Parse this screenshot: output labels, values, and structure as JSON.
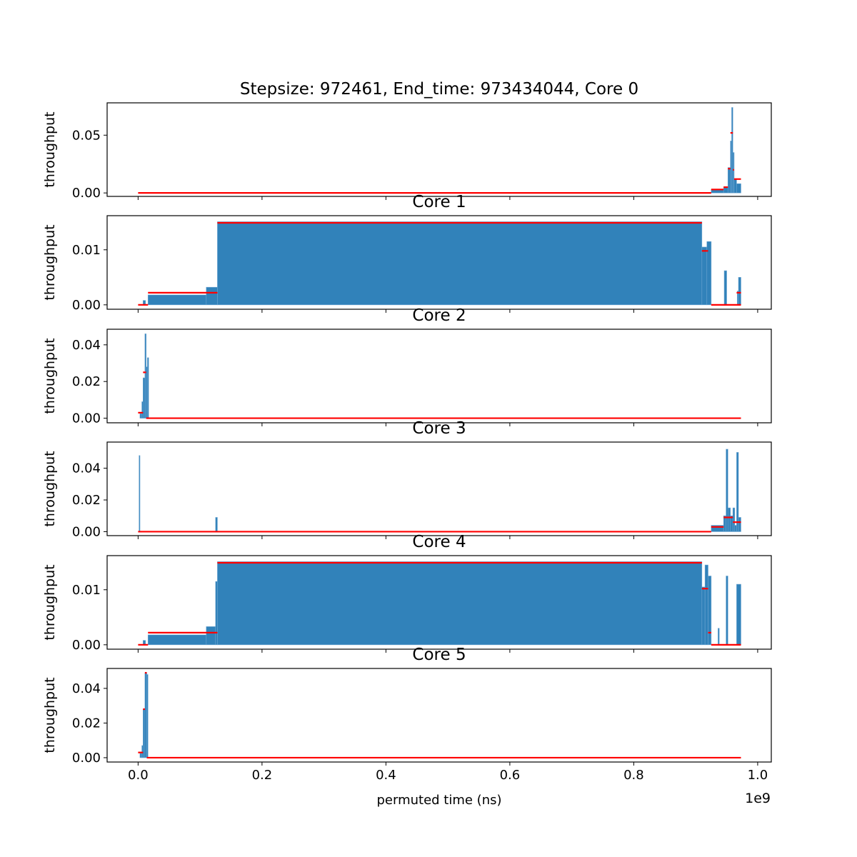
{
  "chart_data": {
    "type": "bar",
    "figure": {
      "xlabel": "permuted time (ns)",
      "x_offset_label": "1e9",
      "xlim": [
        -50000000,
        1022000000
      ],
      "xticks": [
        0,
        200000000,
        400000000,
        600000000,
        800000000,
        1000000000
      ],
      "xtick_labels": [
        "0.0",
        "0.2",
        "0.4",
        "0.6",
        "0.8",
        "1.0"
      ]
    },
    "colors": {
      "bar": "#1f77b4",
      "mean_line": "#ff0000"
    },
    "panels": [
      {
        "title": "Stepsize: 972461, End_time: 973434044, Core 0",
        "ylabel": "throughput",
        "ylim": [
          -0.003,
          0.078
        ],
        "yticks": [
          0,
          0.05
        ],
        "ytick_labels": [
          "0.00",
          "0.05"
        ],
        "bars": [
          [
            925000000,
            945000000,
            0.003
          ],
          [
            945000000,
            952000000,
            0.005
          ],
          [
            952000000,
            956000000,
            0.022
          ],
          [
            956000000,
            958000000,
            0.045
          ],
          [
            958000000,
            960000000,
            0.074
          ],
          [
            960000000,
            962000000,
            0.035
          ],
          [
            962000000,
            966000000,
            0.012
          ],
          [
            966000000,
            973000000,
            0.008
          ]
        ],
        "means": [
          [
            0,
            925000000,
            0
          ],
          [
            925000000,
            945000000,
            0.003
          ],
          [
            945000000,
            952000000,
            0.005
          ],
          [
            952000000,
            956000000,
            0.021
          ],
          [
            956000000,
            960000000,
            0.052
          ],
          [
            960000000,
            962000000,
            0.02
          ],
          [
            962000000,
            973000000,
            0.012
          ]
        ]
      },
      {
        "title": "Core 1",
        "ylabel": "throughput",
        "ylim": [
          -0.0008,
          0.0162
        ],
        "yticks": [
          0,
          0.01
        ],
        "ytick_labels": [
          "0.00",
          "0.01"
        ],
        "bars": [
          [
            8000000,
            12000000,
            0.0008
          ],
          [
            16000000,
            110000000,
            0.0018
          ],
          [
            110000000,
            128000000,
            0.0032
          ],
          [
            128000000,
            910000000,
            0.0151
          ],
          [
            910000000,
            918000000,
            0.0105
          ],
          [
            918000000,
            925000000,
            0.0115
          ],
          [
            946000000,
            950000000,
            0.0062
          ],
          [
            967000000,
            969000000,
            0.0025
          ],
          [
            969000000,
            973000000,
            0.005
          ]
        ],
        "means": [
          [
            0,
            16000000,
            0
          ],
          [
            16000000,
            128000000,
            0.0022
          ],
          [
            128000000,
            910000000,
            0.0149
          ],
          [
            910000000,
            920000000,
            0.0098
          ],
          [
            925000000,
            973000000,
            0
          ],
          [
            966000000,
            973000000,
            0.0022
          ]
        ]
      },
      {
        "title": "Core 2",
        "ylabel": "throughput",
        "ylim": [
          -0.0025,
          0.0485
        ],
        "yticks": [
          0,
          0.02,
          0.04
        ],
        "ytick_labels": [
          "0.00",
          "0.02",
          "0.04"
        ],
        "bars": [
          [
            3000000,
            6000000,
            0.0025
          ],
          [
            6000000,
            8000000,
            0.009
          ],
          [
            8000000,
            11000000,
            0.022
          ],
          [
            11000000,
            13000000,
            0.046
          ],
          [
            13000000,
            15000000,
            0.028
          ],
          [
            15000000,
            17000000,
            0.033
          ]
        ],
        "means": [
          [
            0,
            8000000,
            0.003
          ],
          [
            8000000,
            13000000,
            0.025
          ],
          [
            13000000,
            973000000,
            0
          ]
        ]
      },
      {
        "title": "Core 3",
        "ylabel": "throughput",
        "ylim": [
          -0.0025,
          0.0565
        ],
        "yticks": [
          0,
          0.02,
          0.04
        ],
        "ytick_labels": [
          "0.00",
          "0.02",
          "0.04"
        ],
        "bars": [
          [
            1500000,
            3000000,
            0.048
          ],
          [
            125000000,
            128000000,
            0.009
          ],
          [
            925000000,
            945000000,
            0.004
          ],
          [
            945000000,
            949000000,
            0.01
          ],
          [
            949000000,
            952000000,
            0.052
          ],
          [
            952000000,
            956000000,
            0.015
          ],
          [
            956000000,
            960000000,
            0.01
          ],
          [
            960000000,
            963000000,
            0.015
          ],
          [
            963000000,
            966000000,
            0.004
          ],
          [
            966000000,
            969000000,
            0.05
          ],
          [
            969000000,
            973000000,
            0.009
          ]
        ],
        "means": [
          [
            0,
            925000000,
            0
          ],
          [
            925000000,
            945000000,
            0.003
          ],
          [
            945000000,
            960000000,
            0.009
          ],
          [
            960000000,
            973000000,
            0.006
          ]
        ]
      },
      {
        "title": "Core 4",
        "ylabel": "throughput",
        "ylim": [
          -0.0008,
          0.0162
        ],
        "yticks": [
          0,
          0.01
        ],
        "ytick_labels": [
          "0.00",
          "0.01"
        ],
        "bars": [
          [
            8000000,
            12000000,
            0.0008
          ],
          [
            16000000,
            110000000,
            0.0018
          ],
          [
            110000000,
            125000000,
            0.0033
          ],
          [
            125000000,
            128000000,
            0.0115
          ],
          [
            128000000,
            910000000,
            0.0151
          ],
          [
            910000000,
            915000000,
            0.0105
          ],
          [
            915000000,
            920000000,
            0.0145
          ],
          [
            920000000,
            925000000,
            0.0125
          ],
          [
            936000000,
            938000000,
            0.003
          ],
          [
            949000000,
            952000000,
            0.0125
          ],
          [
            966000000,
            973000000,
            0.011
          ]
        ],
        "means": [
          [
            0,
            16000000,
            0
          ],
          [
            16000000,
            128000000,
            0.0022
          ],
          [
            128000000,
            910000000,
            0.0149
          ],
          [
            910000000,
            920000000,
            0.0102
          ],
          [
            920000000,
            925000000,
            0.0022
          ],
          [
            925000000,
            973000000,
            0
          ]
        ]
      },
      {
        "title": "Core 5",
        "ylabel": "throughput",
        "ylim": [
          -0.0025,
          0.0515
        ],
        "yticks": [
          0,
          0.02,
          0.04
        ],
        "ytick_labels": [
          "0.00",
          "0.02",
          "0.04"
        ],
        "bars": [
          [
            3000000,
            6000000,
            0.0025
          ],
          [
            6000000,
            8000000,
            0.007
          ],
          [
            8000000,
            11000000,
            0.028
          ],
          [
            11000000,
            14000000,
            0.049
          ],
          [
            14000000,
            16000000,
            0.048
          ]
        ],
        "means": [
          [
            0,
            8000000,
            0.003
          ],
          [
            8000000,
            11000000,
            0.028
          ],
          [
            11000000,
            14000000,
            0.049
          ],
          [
            14000000,
            973000000,
            0
          ]
        ]
      }
    ]
  }
}
